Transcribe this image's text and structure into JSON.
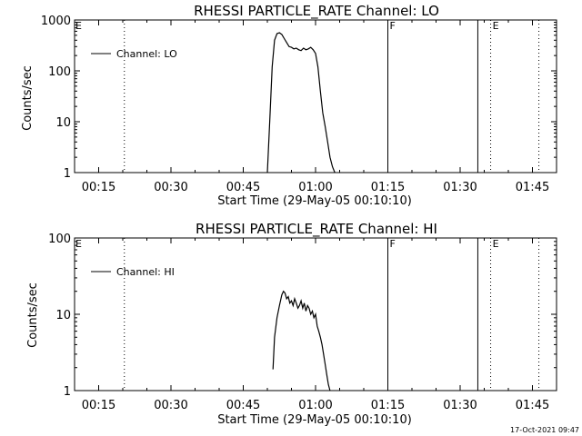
{
  "timestamp": "17-Oct-2021 09:47",
  "chart_data": [
    {
      "type": "line",
      "title": "RHESSI PARTICLE_RATE Channel: LO",
      "xlabel": "Start Time (29-May-05 00:10:10)",
      "ylabel": "Counts/sec",
      "yscale": "log",
      "xlim": [
        "00:10",
        "01:50"
      ],
      "ylim": [
        1,
        1000
      ],
      "xticks": [
        "00:15",
        "00:30",
        "00:45",
        "01:00",
        "01:15",
        "01:30",
        "01:45"
      ],
      "yticks": [
        "1",
        "10",
        "100",
        "1000"
      ],
      "legend": {
        "label": "Channel: LO",
        "position": "top-left"
      },
      "series": [
        {
          "name": "Channel: LO",
          "x": [
            "00:50:00",
            "00:50:30",
            "00:51:00",
            "00:51:30",
            "00:52:00",
            "00:52:30",
            "00:53:00",
            "00:53:30",
            "00:54:00",
            "00:54:30",
            "00:55:00",
            "00:55:30",
            "00:56:00",
            "00:56:30",
            "00:57:00",
            "00:57:30",
            "00:58:00",
            "00:58:30",
            "00:59:00",
            "00:59:30",
            "01:00:00",
            "01:00:30",
            "01:01:00",
            "01:01:30",
            "01:02:00",
            "01:02:30",
            "01:03:00",
            "01:03:30",
            "01:04:00"
          ],
          "values": [
            1,
            10,
            120,
            400,
            540,
            560,
            520,
            430,
            360,
            300,
            290,
            270,
            280,
            260,
            250,
            280,
            260,
            270,
            290,
            260,
            220,
            120,
            40,
            15,
            8,
            4,
            2,
            1.3,
            1
          ]
        }
      ],
      "vertical_lines": [
        {
          "x": "00:20:20",
          "style": "dotted",
          "label": ""
        },
        {
          "x": "01:15:00",
          "style": "solid",
          "label": "F"
        },
        {
          "x": "01:33:40",
          "style": "solid",
          "label": ""
        },
        {
          "x": "01:36:20",
          "style": "dotted",
          "label": "E"
        },
        {
          "x": "01:46:20",
          "style": "dotted",
          "label": ""
        }
      ]
    },
    {
      "type": "line",
      "title": "RHESSI PARTICLE_RATE Channel: HI",
      "xlabel": "Start Time (29-May-05 00:10:10)",
      "ylabel": "Counts/sec",
      "yscale": "log",
      "xlim": [
        "00:10",
        "01:50"
      ],
      "ylim": [
        1,
        100
      ],
      "xticks": [
        "00:15",
        "00:30",
        "00:45",
        "01:00",
        "01:15",
        "01:30",
        "01:45"
      ],
      "yticks": [
        "1",
        "10",
        "100"
      ],
      "legend": {
        "label": "Channel: HI",
        "position": "top-left"
      },
      "series": [
        {
          "name": "Channel: HI",
          "x": [
            "00:51:10",
            "00:51:30",
            "00:52:00",
            "00:52:30",
            "00:53:00",
            "00:53:20",
            "00:53:40",
            "00:54:00",
            "00:54:20",
            "00:54:40",
            "00:55:00",
            "00:55:20",
            "00:55:40",
            "00:56:00",
            "00:56:20",
            "00:56:40",
            "00:57:00",
            "00:57:20",
            "00:57:40",
            "00:58:00",
            "00:58:20",
            "00:58:40",
            "00:59:00",
            "00:59:20",
            "00:59:40",
            "01:00:00",
            "01:00:20",
            "01:00:40",
            "01:01:00",
            "01:01:20",
            "01:01:40",
            "01:02:00",
            "01:02:20",
            "01:02:40",
            "01:03:00"
          ],
          "values": [
            1.9,
            5,
            9,
            13,
            18,
            20,
            19,
            16,
            17,
            14,
            15,
            13,
            16,
            14,
            12,
            13,
            15,
            12,
            14,
            11,
            13,
            12,
            10,
            11,
            9,
            10,
            7,
            6,
            5,
            4,
            3,
            2.2,
            1.6,
            1.2,
            1
          ]
        }
      ],
      "vertical_lines": [
        {
          "x": "00:20:20",
          "style": "dotted",
          "label": ""
        },
        {
          "x": "01:15:00",
          "style": "solid",
          "label": "F"
        },
        {
          "x": "01:33:40",
          "style": "solid",
          "label": ""
        },
        {
          "x": "01:36:20",
          "style": "dotted",
          "label": "E"
        },
        {
          "x": "01:46:20",
          "style": "dotted",
          "label": ""
        }
      ]
    }
  ]
}
